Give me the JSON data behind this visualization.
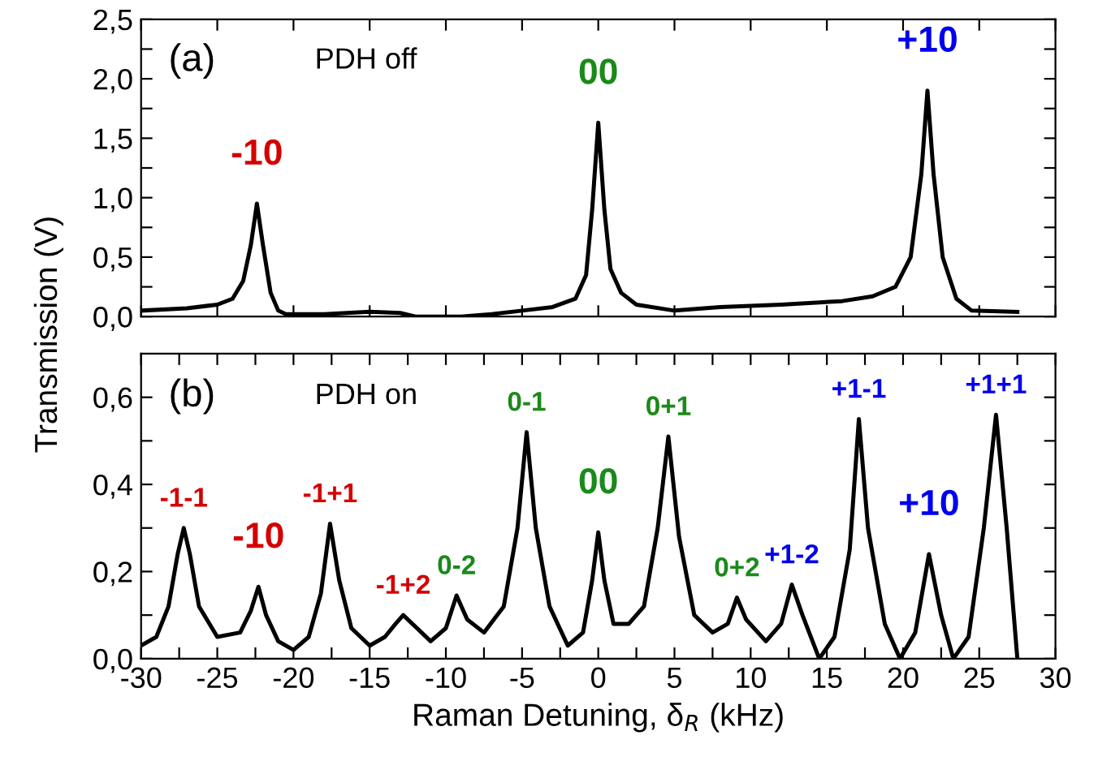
{
  "chart_data": [
    {
      "type": "line",
      "ylabel": "Transmission (V)",
      "tick_labels": "y",
      "grid": false,
      "legend": false,
      "marker": "none",
      "line_style": "solid",
      "xlim": [
        -30,
        30
      ],
      "ylim": [
        0,
        2.5
      ],
      "xticks": [
        {
          "value": -30,
          "label": null
        },
        {
          "value": -25,
          "label": null
        },
        {
          "value": -20,
          "label": null
        },
        {
          "value": -15,
          "label": null
        },
        {
          "value": -10,
          "label": null
        },
        {
          "value": -5,
          "label": null
        },
        {
          "value": 0,
          "label": null
        },
        {
          "value": 5,
          "label": null
        },
        {
          "value": 10,
          "label": null
        },
        {
          "value": 15,
          "label": null
        },
        {
          "value": 20,
          "label": null
        },
        {
          "value": 25,
          "label": null
        },
        {
          "value": 30,
          "label": null
        }
      ],
      "yticks": [
        {
          "value": 0,
          "label": "0,0"
        },
        {
          "value": 0.25,
          "label": null
        },
        {
          "value": 0.5,
          "label": "0,5"
        },
        {
          "value": 0.75,
          "label": null
        },
        {
          "value": 1.0,
          "label": "1,0"
        },
        {
          "value": 1.25,
          "label": null
        },
        {
          "value": 1.5,
          "label": "1,5"
        },
        {
          "value": 1.75,
          "label": null
        },
        {
          "value": 2.0,
          "label": "2,0"
        },
        {
          "value": 2.25,
          "label": null
        },
        {
          "value": 2.5,
          "label": "2,5"
        }
      ],
      "annotations": [
        "(a)",
        "PDH off",
        {
          "text": "-10",
          "x": -22.4,
          "y": 0.95
        },
        {
          "text": "00",
          "x": 0,
          "y": 1.63
        },
        {
          "text": "+10",
          "x": 21.6,
          "y": 1.9
        }
      ],
      "series": [
        {
          "color": "#000000",
          "x": [
            -30,
            -27,
            -25,
            -24,
            -23.3,
            -22.8,
            -22.4,
            -22,
            -21.5,
            -21,
            -20.5,
            -18,
            -15,
            -13,
            -12,
            -9,
            -7,
            -5,
            -3,
            -1.5,
            -0.8,
            -0.4,
            0,
            0.4,
            0.8,
            1.5,
            2.5,
            5,
            8,
            12,
            16,
            18,
            19.5,
            20.5,
            21.2,
            21.6,
            22,
            22.6,
            23.5,
            24.5,
            27.5
          ],
          "values": [
            0.05,
            0.07,
            0.1,
            0.15,
            0.3,
            0.6,
            0.95,
            0.6,
            0.2,
            0.05,
            0.02,
            0.02,
            0.04,
            0.03,
            0.0,
            0.0,
            0.02,
            0.05,
            0.08,
            0.15,
            0.35,
            0.9,
            1.63,
            0.9,
            0.4,
            0.2,
            0.1,
            0.05,
            0.08,
            0.1,
            0.13,
            0.17,
            0.25,
            0.5,
            1.2,
            1.9,
            1.2,
            0.5,
            0.15,
            0.05,
            0.04
          ]
        }
      ]
    },
    {
      "type": "line",
      "xlabel": "Raman Detuning, δ$_{R}$ (kHz)",
      "grid": false,
      "legend": false,
      "marker": "none",
      "line_style": "solid",
      "xlim": [
        -30,
        30
      ],
      "ylim": [
        0,
        0.7
      ],
      "xticks": [
        -30,
        {
          "value": -27.5,
          "label": null
        },
        -25,
        {
          "value": -22.5,
          "label": null
        },
        -20,
        {
          "value": -17.5,
          "label": null
        },
        -15,
        {
          "value": -12.5,
          "label": null
        },
        -10,
        {
          "value": -7.5,
          "label": null
        },
        -5,
        {
          "value": -2.5,
          "label": null
        },
        0,
        {
          "value": 2.5,
          "label": null
        },
        5,
        {
          "value": 7.5,
          "label": null
        },
        10,
        {
          "value": 12.5,
          "label": null
        },
        15,
        {
          "value": 17.5,
          "label": null
        },
        20,
        {
          "value": 22.5,
          "label": null
        },
        25,
        {
          "value": 27.5,
          "label": null
        },
        30
      ],
      "yticks": [
        {
          "value": 0,
          "label": "0,0"
        },
        {
          "value": 0.1,
          "label": null
        },
        {
          "value": 0.2,
          "label": "0,2"
        },
        {
          "value": 0.3,
          "label": null
        },
        {
          "value": 0.4,
          "label": "0,4"
        },
        {
          "value": 0.5,
          "label": null
        },
        {
          "value": 0.6,
          "label": "0,6"
        }
      ],
      "annotations": [
        "(b)",
        "PDH on",
        {
          "text": "-1-1",
          "x": -27.2,
          "y": 0.3
        },
        {
          "text": "-10",
          "x": -22.3,
          "y": 0.165
        },
        {
          "text": "-1+1",
          "x": -17.6,
          "y": 0.31
        },
        {
          "text": "-1+2",
          "x": -12.8,
          "y": 0.1
        },
        {
          "text": "0-2",
          "x": -9.3,
          "y": 0.145
        },
        {
          "text": "0-1",
          "x": -4.7,
          "y": 0.52
        },
        {
          "text": "00",
          "x": 0,
          "y": 0.29
        },
        {
          "text": "0+1",
          "x": 4.6,
          "y": 0.51
        },
        {
          "text": "0+2",
          "x": 9.1,
          "y": 0.14
        },
        {
          "text": "+1-2",
          "x": 12.7,
          "y": 0.17
        },
        {
          "text": "+1-1",
          "x": 17.1,
          "y": 0.55
        },
        {
          "text": "+10",
          "x": 21.7,
          "y": 0.24
        },
        {
          "text": "+1+1",
          "x": 26.1,
          "y": 0.56
        }
      ],
      "series": [
        {
          "color": "#000000",
          "x": [
            -30,
            -29,
            -28.2,
            -27.6,
            -27.2,
            -26.8,
            -26.2,
            -25,
            -23.5,
            -22.8,
            -22.3,
            -21.8,
            -21,
            -20,
            -19,
            -18.2,
            -17.6,
            -17,
            -16.2,
            -15,
            -14,
            -13.3,
            -12.8,
            -12.2,
            -11,
            -10,
            -9.3,
            -8.6,
            -7.5,
            -6.2,
            -5.3,
            -4.7,
            -4.1,
            -3.2,
            -2,
            -1,
            -0.4,
            0,
            0.4,
            1,
            2,
            3,
            3.9,
            4.6,
            5.3,
            6.3,
            7.5,
            8.5,
            9.1,
            9.7,
            11,
            12,
            12.7,
            13.4,
            14.5,
            15.5,
            16.5,
            17.1,
            17.7,
            18.8,
            19.8,
            20.8,
            21.7,
            22.5,
            23.3,
            24.3,
            25.3,
            26.1,
            26.8,
            27.5
          ],
          "values": [
            0.03,
            0.05,
            0.12,
            0.24,
            0.3,
            0.24,
            0.12,
            0.05,
            0.06,
            0.11,
            0.165,
            0.1,
            0.04,
            0.02,
            0.05,
            0.15,
            0.31,
            0.18,
            0.07,
            0.03,
            0.05,
            0.08,
            0.1,
            0.08,
            0.04,
            0.07,
            0.145,
            0.09,
            0.06,
            0.12,
            0.3,
            0.52,
            0.3,
            0.12,
            0.03,
            0.06,
            0.18,
            0.29,
            0.18,
            0.08,
            0.08,
            0.12,
            0.3,
            0.51,
            0.28,
            0.1,
            0.06,
            0.08,
            0.14,
            0.09,
            0.04,
            0.08,
            0.17,
            0.1,
            0.0,
            0.05,
            0.25,
            0.55,
            0.3,
            0.08,
            0.0,
            0.06,
            0.24,
            0.1,
            0.0,
            0.05,
            0.3,
            0.56,
            0.3,
            0.0
          ]
        }
      ]
    }
  ]
}
